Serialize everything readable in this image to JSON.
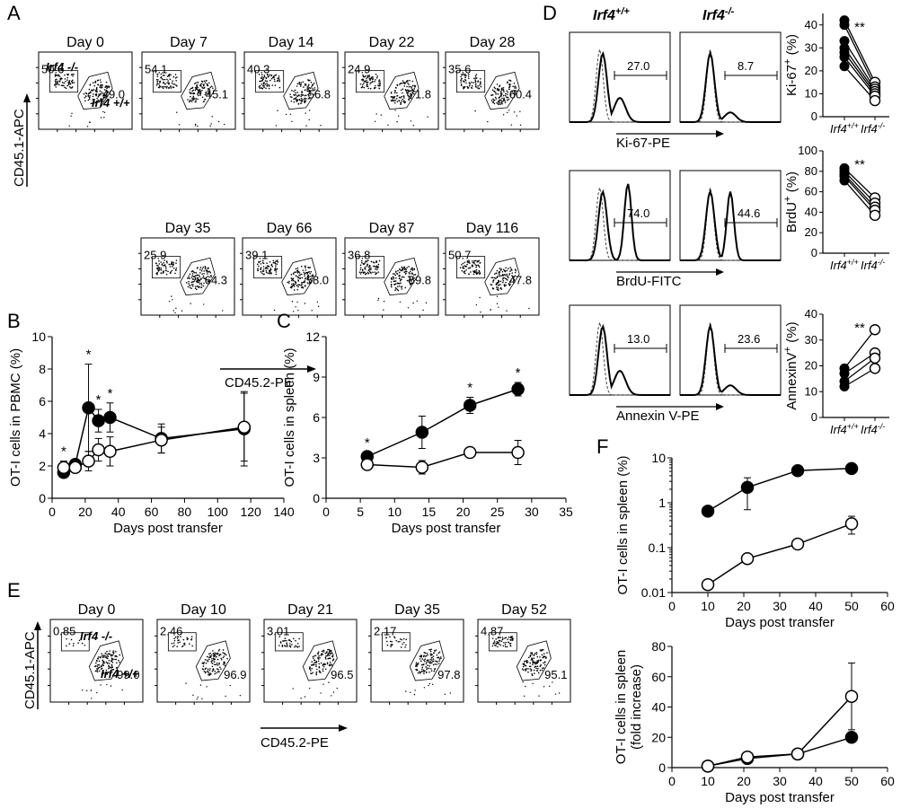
{
  "panels": {
    "A": {
      "letter": "A",
      "ylabel": "CD45.1-APC",
      "xlabel": "CD45.2-PE",
      "ko_label": "Irf4 -/-",
      "wt_label": "Irf4 +/+",
      "plots": [
        {
          "day": "Day 0",
          "top": "50.6",
          "bottom": "49.0"
        },
        {
          "day": "Day 7",
          "top": "54.1",
          "bottom": "45.1"
        },
        {
          "day": "Day 14",
          "top": "40.3",
          "bottom": "56.8"
        },
        {
          "day": "Day 22",
          "top": "24.9",
          "bottom": "71.8"
        },
        {
          "day": "Day 28",
          "top": "35.6",
          "bottom": "60.4"
        },
        {
          "day": "Day 35",
          "top": "25.9",
          "bottom": "64.3"
        },
        {
          "day": "Day 66",
          "top": "39.1",
          "bottom": "58.0"
        },
        {
          "day": "Day 87",
          "top": "36.8",
          "bottom": "59.8"
        },
        {
          "day": "Day 116",
          "top": "50.7",
          "bottom": "47.8"
        }
      ]
    },
    "E": {
      "letter": "E",
      "ylabel": "CD45.1-APC",
      "xlabel": "CD45.2-PE",
      "ko_label": "Irf4 -/-",
      "wt_label": "Irf4 +/+",
      "plots": [
        {
          "day": "Day 0",
          "top": "0.85",
          "bottom": "99.0"
        },
        {
          "day": "Day 10",
          "top": "2.46",
          "bottom": "96.9"
        },
        {
          "day": "Day 21",
          "top": "3.01",
          "bottom": "96.5"
        },
        {
          "day": "Day 35",
          "top": "2.17",
          "bottom": "97.8"
        },
        {
          "day": "Day 52",
          "top": "4.87",
          "bottom": "95.1"
        }
      ]
    },
    "D": {
      "letter": "D",
      "col_wt": "Irf4",
      "col_wt_sup": "+/+",
      "col_ko": "Irf4",
      "col_ko_sup": "-/-",
      "rows": [
        {
          "xlabel": "Ki-67-PE",
          "wt_pct": "27.0",
          "ko_pct": "8.7"
        },
        {
          "xlabel": "BrdU-FITC",
          "wt_pct": "74.0",
          "ko_pct": "44.6"
        },
        {
          "xlabel": "Annexin V-PE",
          "wt_pct": "13.0",
          "ko_pct": "23.6"
        }
      ]
    },
    "B": {
      "letter": "B"
    },
    "C": {
      "letter": "C"
    },
    "F": {
      "letter": "F"
    }
  },
  "chart_data": [
    {
      "id": "B",
      "type": "line",
      "xlabel": "Days post transfer",
      "ylabel": "OT-I cells in PBMC (%)",
      "xlim": [
        0,
        140
      ],
      "ylim": [
        0,
        10
      ],
      "xticks": [
        0,
        20,
        40,
        60,
        80,
        100,
        120,
        140
      ],
      "yticks": [
        0,
        2,
        4,
        6,
        8,
        10
      ],
      "series": [
        {
          "marker": "filled",
          "x": [
            7,
            14,
            22,
            28,
            35,
            66,
            116
          ],
          "y": [
            1.6,
            2.1,
            5.6,
            4.8,
            5.0,
            3.7,
            4.3
          ],
          "err": [
            0.3,
            0.3,
            2.7,
            0.7,
            0.9,
            0.9,
            2.3
          ]
        },
        {
          "marker": "open",
          "x": [
            7,
            14,
            22,
            28,
            35,
            66,
            116
          ],
          "y": [
            1.9,
            1.9,
            2.3,
            3.0,
            2.9,
            3.6,
            4.4
          ],
          "err": [
            0.4,
            0.3,
            0.6,
            0.7,
            0.9,
            0.8,
            2.1
          ]
        }
      ],
      "significance": [
        {
          "x": 7,
          "label": "*"
        },
        {
          "x": 22,
          "label": "*"
        },
        {
          "x": 28,
          "label": "*"
        },
        {
          "x": 35,
          "label": "*"
        }
      ]
    },
    {
      "id": "C",
      "type": "line",
      "xlabel": "Days post transfer",
      "ylabel": "OT-I cells in spleen (%)",
      "xlim": [
        0,
        35
      ],
      "ylim": [
        0,
        12
      ],
      "xticks": [
        0,
        5,
        10,
        15,
        20,
        25,
        30,
        35
      ],
      "yticks": [
        0,
        3,
        6,
        9,
        12
      ],
      "series": [
        {
          "marker": "filled",
          "x": [
            6,
            14,
            21,
            28
          ],
          "y": [
            3.1,
            4.9,
            6.9,
            8.1
          ],
          "err": [
            0.3,
            1.2,
            0.6,
            0.5
          ]
        },
        {
          "marker": "open",
          "x": [
            6,
            14,
            21,
            28
          ],
          "y": [
            2.5,
            2.3,
            3.4,
            3.4
          ],
          "err": [
            0.2,
            0.5,
            0.3,
            0.9
          ]
        }
      ],
      "significance": [
        {
          "x": 6,
          "label": "*"
        },
        {
          "x": 21,
          "label": "*"
        },
        {
          "x": 28,
          "label": "*"
        }
      ]
    },
    {
      "id": "D-Ki67",
      "type": "scatter",
      "ylabel": "Ki-67+ (%)",
      "ylabel_main": "Ki-67",
      "ylabel_sup": "+",
      "ylabel_unit": " (%)",
      "categories": [
        "Irf4+/+",
        "Irf4-/-"
      ],
      "cat_main": [
        "Irf4",
        "Irf4"
      ],
      "cat_sup": [
        "+/+",
        "-/-"
      ],
      "ylim": [
        0,
        45
      ],
      "yticks": [
        0,
        10,
        20,
        30,
        40
      ],
      "pairs": [
        [
          42,
          15
        ],
        [
          40,
          13
        ],
        [
          33,
          12
        ],
        [
          30,
          11
        ],
        [
          28,
          10
        ],
        [
          26,
          9
        ],
        [
          22,
          7
        ]
      ],
      "significance": "**"
    },
    {
      "id": "D-BrdU",
      "type": "scatter",
      "ylabel": "BrdU+ (%)",
      "ylabel_main": "BrdU",
      "ylabel_sup": "+",
      "ylabel_unit": " (%)",
      "categories": [
        "Irf4+/+",
        "Irf4-/-"
      ],
      "cat_main": [
        "Irf4",
        "Irf4"
      ],
      "cat_sup": [
        "+/+",
        "-/-"
      ],
      "ylim": [
        0,
        100
      ],
      "yticks": [
        0,
        20,
        40,
        60,
        80,
        100
      ],
      "pairs": [
        [
          83,
          54
        ],
        [
          80,
          49
        ],
        [
          77,
          45
        ],
        [
          75,
          42
        ],
        [
          71,
          37
        ]
      ],
      "significance": "**"
    },
    {
      "id": "D-Annexin",
      "type": "scatter",
      "ylabel": "AnnexinV+ (%)",
      "ylabel_main": "AnnexinV",
      "ylabel_sup": "+",
      "ylabel_unit": " (%)",
      "categories": [
        "Irf4+/+",
        "Irf4-/-"
      ],
      "cat_main": [
        "Irf4",
        "Irf4"
      ],
      "cat_sup": [
        "+/+",
        "-/-"
      ],
      "ylim": [
        0,
        40
      ],
      "yticks": [
        0,
        10,
        20,
        30,
        40
      ],
      "pairs": [
        [
          19,
          34
        ],
        [
          17,
          25
        ],
        [
          14,
          23
        ],
        [
          12,
          19
        ]
      ],
      "significance": "**"
    },
    {
      "id": "F-top",
      "type": "line",
      "log_y": true,
      "xlabel": "Days post transfer",
      "ylabel": "OT-I cells in spleen (%)",
      "xlim": [
        0,
        60
      ],
      "ylim": [
        0.01,
        10
      ],
      "xticks": [
        0,
        10,
        20,
        30,
        40,
        50,
        60
      ],
      "yticks": [
        0.01,
        0.1,
        1,
        10
      ],
      "ytick_labels": [
        "0.01",
        "0.1",
        "1",
        "10"
      ],
      "series": [
        {
          "marker": "filled",
          "x": [
            10,
            21,
            35,
            50
          ],
          "y": [
            0.65,
            2.2,
            5.2,
            5.8
          ],
          "err_lo": [
            0.65,
            0.7,
            4.2,
            5.8
          ],
          "err_hi": [
            0.65,
            3.6,
            6.5,
            5.8
          ]
        },
        {
          "marker": "open",
          "x": [
            10,
            21,
            35,
            50
          ],
          "y": [
            0.015,
            0.057,
            0.12,
            0.34
          ],
          "err_lo": [
            0.015,
            0.057,
            0.1,
            0.2
          ],
          "err_hi": [
            0.015,
            0.057,
            0.14,
            0.5
          ]
        }
      ]
    },
    {
      "id": "F-bottom",
      "type": "line",
      "xlabel": "Days post transfer",
      "ylabel": "OT-I cells in spleen",
      "ylabel2": "(fold increase)",
      "xlim": [
        0,
        60
      ],
      "ylim": [
        0,
        80
      ],
      "xticks": [
        0,
        10,
        20,
        30,
        40,
        50,
        60
      ],
      "yticks": [
        0,
        20,
        40,
        60,
        80
      ],
      "series": [
        {
          "marker": "filled",
          "x": [
            10,
            21,
            35,
            50
          ],
          "y": [
            1,
            6,
            9,
            20
          ],
          "err": [
            0,
            0,
            0,
            0
          ]
        },
        {
          "marker": "open",
          "x": [
            10,
            21,
            35,
            50
          ],
          "y": [
            1,
            7,
            9,
            47
          ],
          "err": [
            0,
            1,
            0,
            22
          ]
        }
      ]
    }
  ]
}
